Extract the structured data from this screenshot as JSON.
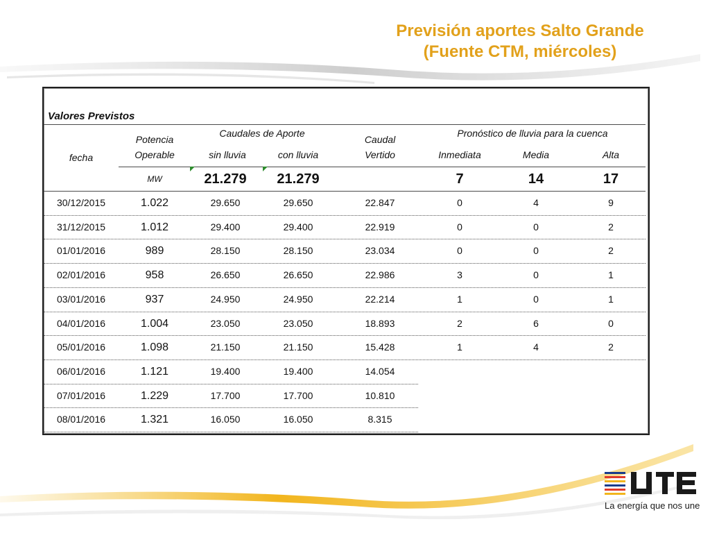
{
  "slide": {
    "title": "Previsión aportes Salto Grande (Fuente CTM, miércoles)",
    "accent_color": "#e2a11b"
  },
  "table": {
    "section_title": "Valores Previstos",
    "headers": {
      "fecha": "fecha",
      "potencia": "Potencia Operable",
      "caudales_group": "Caudales de Aporte",
      "sin_lluvia": "sin lluvia",
      "con_lluvia": "con lluvia",
      "caudal_vertido": "Caudal Vertido",
      "pronostico_group": "Pronóstico de lluvia para la cuenca",
      "inmediata": "Inmediata",
      "media": "Media",
      "alta": "Alta"
    },
    "summary": {
      "unit": "MW",
      "sin_lluvia": "21.279",
      "con_lluvia": "21.279",
      "inmediata": "7",
      "media": "14",
      "alta": "17"
    },
    "rows": [
      {
        "fecha": "30/12/2015",
        "potencia": "1.022",
        "sin": "29.650",
        "con": "29.650",
        "vertido": "22.847",
        "inm": "0",
        "med": "4",
        "alta": "9"
      },
      {
        "fecha": "31/12/2015",
        "potencia": "1.012",
        "sin": "29.400",
        "con": "29.400",
        "vertido": "22.919",
        "inm": "0",
        "med": "0",
        "alta": "2"
      },
      {
        "fecha": "01/01/2016",
        "potencia": "989",
        "sin": "28.150",
        "con": "28.150",
        "vertido": "23.034",
        "inm": "0",
        "med": "0",
        "alta": "2"
      },
      {
        "fecha": "02/01/2016",
        "potencia": "958",
        "sin": "26.650",
        "con": "26.650",
        "vertido": "22.986",
        "inm": "3",
        "med": "0",
        "alta": "1"
      },
      {
        "fecha": "03/01/2016",
        "potencia": "937",
        "sin": "24.950",
        "con": "24.950",
        "vertido": "22.214",
        "inm": "1",
        "med": "0",
        "alta": "1"
      },
      {
        "fecha": "04/01/2016",
        "potencia": "1.004",
        "sin": "23.050",
        "con": "23.050",
        "vertido": "18.893",
        "inm": "2",
        "med": "6",
        "alta": "0"
      },
      {
        "fecha": "05/01/2016",
        "potencia": "1.098",
        "sin": "21.150",
        "con": "21.150",
        "vertido": "15.428",
        "inm": "1",
        "med": "4",
        "alta": "2"
      },
      {
        "fecha": "06/01/2016",
        "potencia": "1.121",
        "sin": "19.400",
        "con": "19.400",
        "vertido": "14.054",
        "inm": "",
        "med": "",
        "alta": ""
      },
      {
        "fecha": "07/01/2016",
        "potencia": "1.229",
        "sin": "17.700",
        "con": "17.700",
        "vertido": "10.810",
        "inm": "",
        "med": "",
        "alta": ""
      },
      {
        "fecha": "08/01/2016",
        "potencia": "1.321",
        "sin": "16.050",
        "con": "16.050",
        "vertido": "8.315",
        "inm": "",
        "med": "",
        "alta": ""
      }
    ]
  },
  "branding": {
    "logo_text": "UTE",
    "tagline": "La energía que nos une",
    "logo_color": "#1a1a1a"
  }
}
